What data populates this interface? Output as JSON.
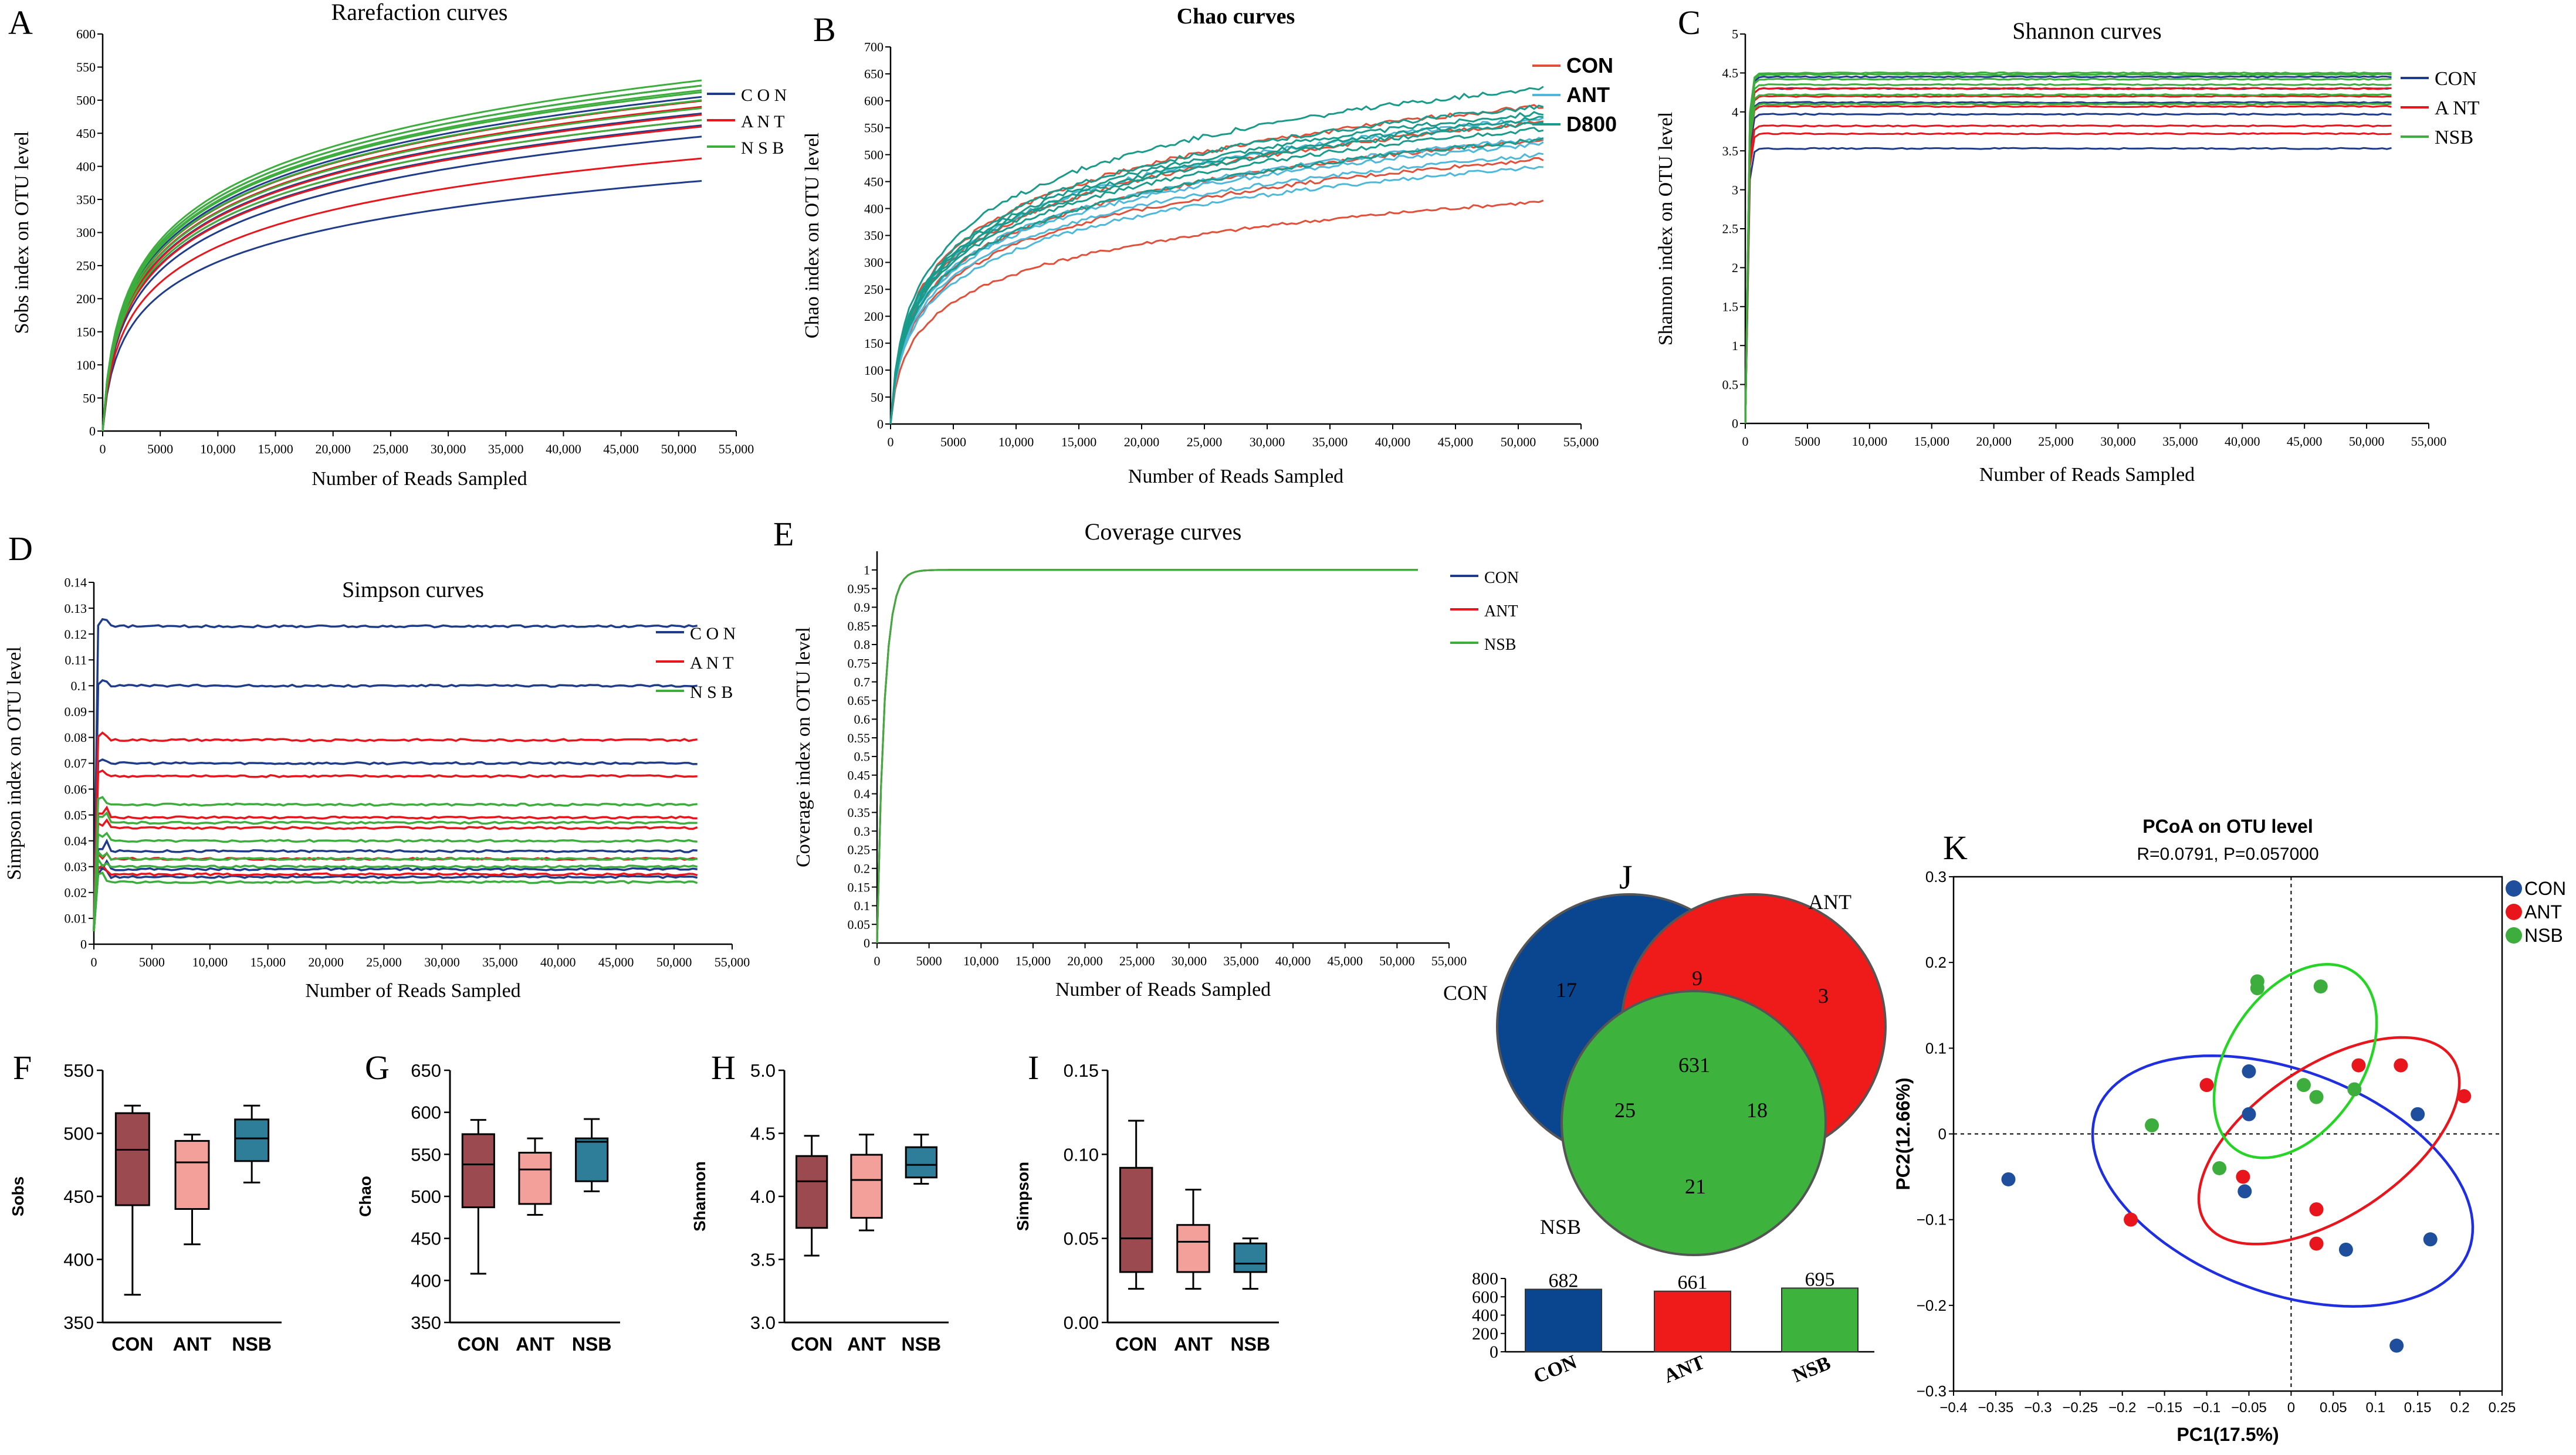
{
  "panel_letters": [
    "A",
    "B",
    "C",
    "D",
    "E",
    "F",
    "G",
    "H",
    "I",
    "J",
    "K"
  ],
  "chart_data": [
    {
      "id": "A",
      "type": "line",
      "title": "Rarefaction curves",
      "xlabel": "Number of Reads Sampled",
      "ylabel": "Sobs index on OTU level",
      "xlim": [
        0,
        55000
      ],
      "ylim": [
        0,
        600
      ],
      "xticks": [
        0,
        5000,
        10000,
        15000,
        20000,
        25000,
        30000,
        35000,
        40000,
        45000,
        50000,
        55000
      ],
      "xtick_labels": [
        "0",
        "5000",
        "10,000",
        "15,000",
        "20,000",
        "25,000",
        "30,000",
        "35,000",
        "40,000",
        "45,000",
        "50,000",
        "55,000"
      ],
      "yticks": [
        0,
        50,
        100,
        150,
        200,
        250,
        300,
        350,
        400,
        450,
        500,
        550,
        600
      ],
      "ytick_labels": [
        "0",
        "50",
        "100",
        "150",
        "200",
        "250",
        "300",
        "350",
        "400",
        "450",
        "500",
        "550",
        "600"
      ],
      "x_end": 52000,
      "legend": [
        {
          "label": "C O N",
          "color": "#1f3c8a"
        },
        {
          "label": "A N T",
          "color": "#e8161c"
        },
        {
          "label": "N S B",
          "color": "#3dad3d"
        }
      ],
      "series": [
        {
          "group": "CON",
          "final": [
            378,
            445,
            480,
            505,
            522,
            462
          ]
        },
        {
          "group": "ANT",
          "final": [
            412,
            460,
            478,
            490,
            499,
            470
          ]
        },
        {
          "group": "NSB",
          "final": [
            470,
            500,
            512,
            522,
            530,
            488,
            515
          ]
        }
      ]
    },
    {
      "id": "B",
      "type": "line",
      "title": "Chao curves",
      "xlabel": "Number of Reads Sampled",
      "ylabel": "Chao index on OTU level",
      "xlim": [
        0,
        55000
      ],
      "ylim": [
        0,
        700
      ],
      "xticks": [
        0,
        5000,
        10000,
        15000,
        20000,
        25000,
        30000,
        35000,
        40000,
        45000,
        50000,
        55000
      ],
      "xtick_labels": [
        "0",
        "5000",
        "10,000",
        "15,000",
        "20,000",
        "25,000",
        "30,000",
        "35,000",
        "40,000",
        "45,000",
        "50,000",
        "55,000"
      ],
      "yticks": [
        0,
        50,
        100,
        150,
        200,
        250,
        300,
        350,
        400,
        450,
        500,
        550,
        600,
        650,
        700
      ],
      "ytick_labels": [
        "0",
        "50",
        "100",
        "150",
        "200",
        "250",
        "300",
        "350",
        "400",
        "450",
        "500",
        "550",
        "600",
        "650",
        "700"
      ],
      "x_end": 52000,
      "legend": [
        {
          "label": "CON",
          "color": "#e0503a"
        },
        {
          "label": "ANT",
          "color": "#4fb8d8"
        },
        {
          "label": "D800",
          "color": "#1a9a8a"
        }
      ],
      "series": [
        {
          "group": "CON",
          "final": [
            413,
            492,
            528,
            560,
            591
          ]
        },
        {
          "group": "ANT",
          "final": [
            478,
            500,
            520,
            530,
            568
          ]
        },
        {
          "group": "D800",
          "final": [
            528,
            548,
            560,
            568,
            578,
            590,
            625
          ]
        }
      ]
    },
    {
      "id": "C",
      "type": "line",
      "title": "Shannon curves",
      "xlabel": "Number of Reads Sampled",
      "ylabel": "Shannon index on OTU level",
      "xlim": [
        0,
        55000
      ],
      "ylim": [
        0,
        5
      ],
      "xticks": [
        0,
        5000,
        10000,
        15000,
        20000,
        25000,
        30000,
        35000,
        40000,
        45000,
        50000,
        55000
      ],
      "xtick_labels": [
        "0",
        "5000",
        "10,000",
        "15,000",
        "20,000",
        "25,000",
        "30,000",
        "35,000",
        "40,000",
        "45,000",
        "50,000",
        "55,000"
      ],
      "yticks": [
        0,
        0.5,
        1,
        1.5,
        2,
        2.5,
        3,
        3.5,
        4,
        4.5,
        5
      ],
      "ytick_labels": [
        "0",
        "0.5",
        "1",
        "1.5",
        "2",
        "2.5",
        "3",
        "3.5",
        "4",
        "4.5",
        "5"
      ],
      "x_end": 52000,
      "legend": [
        {
          "label": "CON",
          "color": "#1f3c8a"
        },
        {
          "label": "A NT",
          "color": "#e8161c"
        },
        {
          "label": "NSB",
          "color": "#3dad3d"
        }
      ],
      "series": [
        {
          "group": "CON",
          "final": [
            3.53,
            3.97,
            4.12,
            4.3,
            4.45
          ]
        },
        {
          "group": "ANT",
          "final": [
            3.72,
            3.82,
            4.07,
            4.2,
            4.3
          ]
        },
        {
          "group": "NSB",
          "final": [
            4.1,
            4.22,
            4.35,
            4.42,
            4.48,
            4.5
          ]
        }
      ]
    },
    {
      "id": "D",
      "type": "line",
      "title": "Simpson curves",
      "xlabel": "Number of Reads Sampled",
      "ylabel": "Simpson index on OTU level",
      "xlim": [
        0,
        55000
      ],
      "ylim": [
        0,
        0.14
      ],
      "xticks": [
        0,
        5000,
        10000,
        15000,
        20000,
        25000,
        30000,
        35000,
        40000,
        45000,
        50000,
        55000
      ],
      "xtick_labels": [
        "0",
        "5000",
        "10,000",
        "15,000",
        "20,000",
        "25,000",
        "30,000",
        "35,000",
        "40,000",
        "45,000",
        "50,000",
        "55,000"
      ],
      "yticks": [
        0,
        0.01,
        0.02,
        0.03,
        0.04,
        0.05,
        0.06,
        0.07,
        0.08,
        0.09,
        0.1,
        0.11,
        0.12,
        0.13,
        0.14
      ],
      "ytick_labels": [
        "0",
        "0.01",
        "0.02",
        "0.03",
        "0.04",
        "0.05",
        "0.06",
        "0.07",
        "0.08",
        "0.09",
        "0.1",
        "0.11",
        "0.12",
        "0.13",
        "0.14"
      ],
      "x_end": 52000,
      "legend": [
        {
          "label": "C O N",
          "color": "#1f3c8a"
        },
        {
          "label": "A N T",
          "color": "#e8161c"
        },
        {
          "label": "N S B",
          "color": "#3dad3d"
        }
      ],
      "series": [
        {
          "group": "CON",
          "final": [
            0.123,
            0.1,
            0.07,
            0.036,
            0.029,
            0.026
          ]
        },
        {
          "group": "ANT",
          "final": [
            0.079,
            0.065,
            0.049,
            0.045,
            0.033,
            0.027
          ]
        },
        {
          "group": "NSB",
          "final": [
            0.054,
            0.047,
            0.04,
            0.033,
            0.03,
            0.024
          ]
        }
      ]
    },
    {
      "id": "E",
      "type": "line",
      "title": "Coverage curves",
      "xlabel": "Number of Reads Sampled",
      "ylabel": "Coverage index on OTU level",
      "xlim": [
        0,
        55000
      ],
      "ylim": [
        0,
        1.05
      ],
      "xticks": [
        0,
        5000,
        10000,
        15000,
        20000,
        25000,
        30000,
        35000,
        40000,
        45000,
        50000,
        55000
      ],
      "xtick_labels": [
        "0",
        "5000",
        "10,000",
        "15,000",
        "20,000",
        "25,000",
        "30,000",
        "35,000",
        "40,000",
        "45,000",
        "50,000",
        "55,000"
      ],
      "yticks": [
        0,
        0.05,
        0.1,
        0.15,
        0.2,
        0.25,
        0.3,
        0.35,
        0.4,
        0.45,
        0.5,
        0.55,
        0.6,
        0.65,
        0.7,
        0.75,
        0.8,
        0.85,
        0.9,
        0.95,
        1
      ],
      "ytick_labels": [
        "0",
        "0.05",
        "0.1",
        "0.15",
        "0.2",
        "0.25",
        "0.3",
        "0.35",
        "0.4",
        "0.45",
        "0.5",
        "0.55",
        "0.6",
        "0.65",
        "0.7",
        "0.75",
        "0.8",
        "0.85",
        "0.9",
        "0.95",
        "1"
      ],
      "x_end": 52000,
      "legend": [
        {
          "label": "CON",
          "color": "#1f3c8a"
        },
        {
          "label": "ANT",
          "color": "#e8161c"
        },
        {
          "label": "NSB",
          "color": "#3dad3d"
        }
      ],
      "series": [
        {
          "group": "CON",
          "final": [
            1
          ]
        },
        {
          "group": "ANT",
          "final": [
            1
          ]
        },
        {
          "group": "NSB",
          "final": [
            1
          ]
        }
      ]
    },
    {
      "id": "F",
      "type": "box",
      "ylabel": "Sobs",
      "categories": [
        "CON",
        "ANT",
        "NSB"
      ],
      "ylim": [
        350,
        550
      ],
      "yticks": [
        350,
        400,
        450,
        500,
        550
      ],
      "ytick_labels": [
        "350",
        "400",
        "450",
        "500",
        "550"
      ],
      "colors": [
        "#9b4a4f",
        "#f4a09a",
        "#2e7e9a"
      ],
      "boxes": [
        {
          "min": 372,
          "q1": 443,
          "median": 487,
          "q3": 516,
          "max": 522
        },
        {
          "min": 412,
          "q1": 440,
          "median": 477,
          "q3": 494,
          "max": 499
        },
        {
          "min": 461,
          "q1": 478,
          "median": 496,
          "q3": 511,
          "max": 522
        }
      ]
    },
    {
      "id": "G",
      "type": "box",
      "ylabel": "Chao",
      "categories": [
        "CON",
        "ANT",
        "NSB"
      ],
      "ylim": [
        350,
        650
      ],
      "yticks": [
        350,
        400,
        450,
        500,
        550,
        600,
        650
      ],
      "ytick_labels": [
        "350",
        "400",
        "450",
        "500",
        "550",
        "600",
        "650"
      ],
      "colors": [
        "#9b4a4f",
        "#f4a09a",
        "#2e7e9a"
      ],
      "boxes": [
        {
          "min": 408,
          "q1": 487,
          "median": 538,
          "q3": 574,
          "max": 591
        },
        {
          "min": 478,
          "q1": 491,
          "median": 532,
          "q3": 552,
          "max": 569
        },
        {
          "min": 506,
          "q1": 518,
          "median": 565,
          "q3": 569,
          "max": 592
        }
      ]
    },
    {
      "id": "H",
      "type": "box",
      "ylabel": "Shannon",
      "categories": [
        "CON",
        "ANT",
        "NSB"
      ],
      "ylim": [
        3.0,
        5.0
      ],
      "yticks": [
        3.0,
        3.5,
        4.0,
        4.5,
        5.0
      ],
      "ytick_labels": [
        "3.0",
        "3.5",
        "4.0",
        "4.5",
        "5.0"
      ],
      "colors": [
        "#9b4a4f",
        "#f4a09a",
        "#2e7e9a"
      ],
      "boxes": [
        {
          "min": 3.53,
          "q1": 3.75,
          "median": 4.12,
          "q3": 4.32,
          "max": 4.48
        },
        {
          "min": 3.73,
          "q1": 3.83,
          "median": 4.13,
          "q3": 4.33,
          "max": 4.49
        },
        {
          "min": 4.1,
          "q1": 4.15,
          "median": 4.25,
          "q3": 4.39,
          "max": 4.49
        }
      ]
    },
    {
      "id": "I",
      "type": "box",
      "ylabel": "Simpson",
      "categories": [
        "CON",
        "ANT",
        "NSB"
      ],
      "ylim": [
        0,
        0.15
      ],
      "yticks": [
        0,
        0.05,
        0.1,
        0.15
      ],
      "ytick_labels": [
        "0.00",
        "0.05",
        "0.10",
        "0.15"
      ],
      "colors": [
        "#9b4a4f",
        "#f4a09a",
        "#2e7e9a"
      ],
      "boxes": [
        {
          "min": 0.02,
          "q1": 0.03,
          "median": 0.05,
          "q3": 0.092,
          "max": 0.12
        },
        {
          "min": 0.02,
          "q1": 0.03,
          "median": 0.048,
          "q3": 0.058,
          "max": 0.079
        },
        {
          "min": 0.02,
          "q1": 0.03,
          "median": 0.035,
          "q3": 0.047,
          "max": 0.05
        }
      ]
    },
    {
      "id": "J",
      "type": "venn",
      "sets": [
        {
          "label": "CON",
          "color": "#0a4590"
        },
        {
          "label": "ANT",
          "color": "#ef1a1a"
        },
        {
          "label": "NSB",
          "color": "#3db23d"
        }
      ],
      "regions": {
        "CON_only": "17",
        "ANT_only": "3",
        "NSB_only": "21",
        "CON_ANT": "9",
        "CON_NSB": "25",
        "ANT_NSB": "18",
        "all": "631"
      },
      "bar": {
        "categories": [
          "CON",
          "ANT",
          "NSB"
        ],
        "values": [
          682,
          661,
          695
        ],
        "labels": [
          "682",
          "661",
          "695"
        ],
        "ylim": [
          0,
          800
        ],
        "yticks": [
          0,
          200,
          400,
          600,
          800
        ],
        "ytick_labels": [
          "0",
          "200",
          "400",
          "600",
          "800"
        ]
      }
    },
    {
      "id": "K",
      "type": "scatter",
      "title": "PCoA on OTU level",
      "subtitle": "R=0.0791, P=0.057000",
      "xlabel": "PC1(17.5%)",
      "ylabel": "PC2(12.66%)",
      "xlim": [
        -0.4,
        0.25
      ],
      "ylim": [
        -0.3,
        0.3
      ],
      "xticks": [
        -0.4,
        -0.35,
        -0.3,
        -0.25,
        -0.2,
        -0.15,
        -0.1,
        -0.05,
        0,
        0.05,
        0.1,
        0.15,
        0.2,
        0.25
      ],
      "xtick_labels": [
        "−0.4",
        "−0.35",
        "−0.3",
        "−0.25",
        "−0.2",
        "−0.15",
        "−0.1",
        "−0.05",
        "0",
        "0.05",
        "0.1",
        "0.15",
        "0.2",
        "0.25"
      ],
      "yticks": [
        -0.3,
        -0.2,
        -0.1,
        0,
        0.1,
        0.2,
        0.3
      ],
      "ytick_labels": [
        "−0.3",
        "−0.2",
        "−0.1",
        "0",
        "0.1",
        "0.2",
        "0.3"
      ],
      "legend": [
        {
          "label": "CON",
          "color": "#1f4e9c"
        },
        {
          "label": "ANT",
          "color": "#e8161c"
        },
        {
          "label": "NSB",
          "color": "#3dad3d"
        }
      ],
      "series": [
        {
          "name": "CON",
          "color": "#1f4e9c",
          "points": [
            [
              -0.335,
              -0.053
            ],
            [
              -0.05,
              0.073
            ],
            [
              -0.05,
              0.023
            ],
            [
              -0.055,
              -0.067
            ],
            [
              0.065,
              -0.135
            ],
            [
              0.15,
              0.023
            ],
            [
              0.165,
              -0.123
            ],
            [
              0.125,
              -0.247
            ]
          ]
        },
        {
          "name": "ANT",
          "color": "#e8161c",
          "points": [
            [
              -0.19,
              -0.1
            ],
            [
              -0.1,
              0.057
            ],
            [
              -0.057,
              -0.05
            ],
            [
              0.03,
              -0.088
            ],
            [
              0.03,
              -0.128
            ],
            [
              0.08,
              0.08
            ],
            [
              0.13,
              0.08
            ],
            [
              0.205,
              0.044
            ]
          ]
        },
        {
          "name": "NSB",
          "color": "#3dad3d",
          "points": [
            [
              -0.165,
              0.01
            ],
            [
              -0.085,
              -0.04
            ],
            [
              -0.04,
              0.17
            ],
            [
              -0.04,
              0.178
            ],
            [
              0.015,
              0.057
            ],
            [
              0.035,
              0.172
            ],
            [
              0.03,
              0.043
            ],
            [
              0.075,
              0.052
            ]
          ]
        }
      ],
      "ellipses": [
        {
          "group": "CON",
          "color": "#1f2fe0",
          "cx": -0.01,
          "cy": -0.055,
          "rx": 0.235,
          "ry": 0.13,
          "angle": -20
        },
        {
          "group": "ANT",
          "color": "#e8161c",
          "cx": 0.045,
          "cy": -0.008,
          "rx": 0.175,
          "ry": 0.088,
          "angle": 33
        },
        {
          "group": "NSB",
          "color": "#26d426",
          "cx": 0.005,
          "cy": 0.085,
          "rx": 0.08,
          "ry": 0.125,
          "angle": -34
        }
      ]
    }
  ]
}
